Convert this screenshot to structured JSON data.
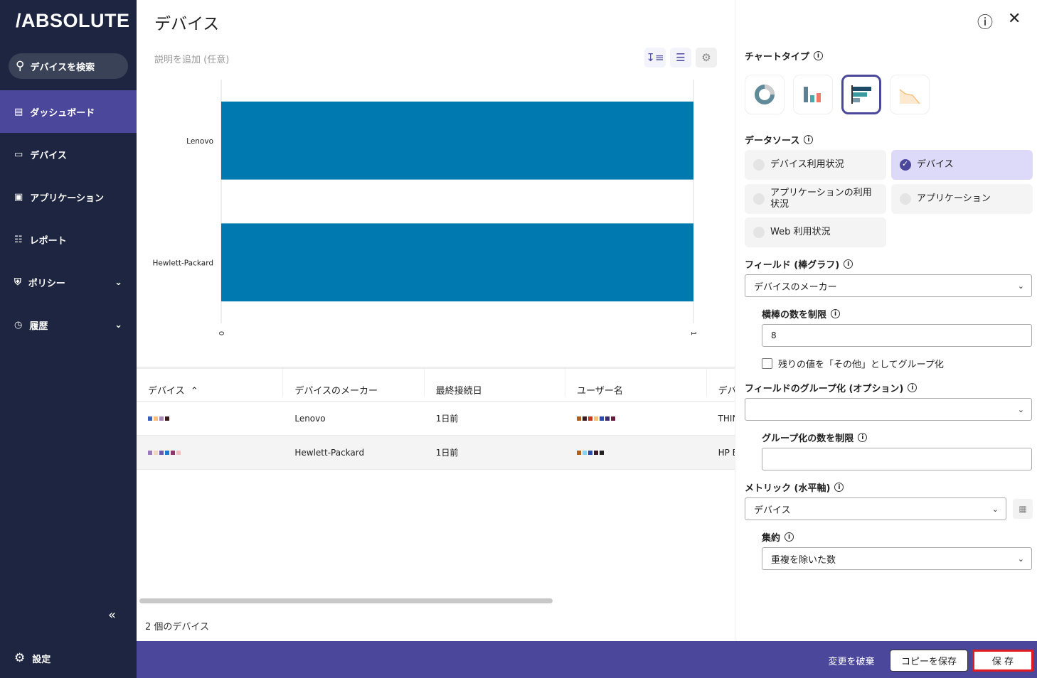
{
  "sidebar": {
    "logo": "/ABSOLUTE",
    "search": "デバイスを検索",
    "items": [
      {
        "label": "ダッシュボード"
      },
      {
        "label": "デバイス"
      },
      {
        "label": "アプリケーション"
      },
      {
        "label": "レポート"
      },
      {
        "label": "ポリシー"
      },
      {
        "label": "履歴"
      }
    ],
    "settings": "設定"
  },
  "header": {
    "title": "デバイス",
    "description_placeholder": "説明を追加 (任意)"
  },
  "chart_data": {
    "type": "bar",
    "orientation": "horizontal",
    "categories": [
      "Lenovo",
      "Hewlett-Packard"
    ],
    "values": [
      1,
      1
    ],
    "xlim": [
      0,
      1
    ],
    "xticks": [
      "0",
      "1"
    ],
    "color": "#0079b0",
    "grid": true
  },
  "table": {
    "columns": [
      "デバイス",
      "デバイスのメーカー",
      "最終接続日",
      "ユーザー名",
      "デバ"
    ],
    "rows": [
      {
        "maker": "Lenovo",
        "last": "1日前",
        "model": "THIN"
      },
      {
        "maker": "Hewlett-Packard",
        "last": "1日前",
        "model": "HP E"
      }
    ],
    "count": "2 個のデバイス"
  },
  "panel": {
    "chart_type_label": "チャートタイプ",
    "chart_types": [
      "donut",
      "column",
      "bar",
      "area"
    ],
    "selected_chart_type": "bar",
    "data_source_label": "データソース",
    "data_sources": [
      {
        "label": "デバイス利用状況",
        "selected": false
      },
      {
        "label": "デバイス",
        "selected": true
      },
      {
        "label": "アプリケーションの利用状況",
        "selected": false
      },
      {
        "label": "アプリケーション",
        "selected": false
      },
      {
        "label": "Web 利用状況",
        "selected": false
      }
    ],
    "field_label": "フィールド (棒グラフ)",
    "field_value": "デバイスのメーカー",
    "limit_label": "横棒の数を制限",
    "limit_value": "8",
    "group_other_label": "残りの値を「その他」としてグループ化",
    "group_other_checked": false,
    "grouping_label": "フィールドのグループ化 (オプション)",
    "grouping_value": "",
    "group_limit_label": "グループ化の数を制限",
    "group_limit_value": "",
    "metric_label": "メトリック (水平軸)",
    "metric_value": "デバイス",
    "agg_label": "集約",
    "agg_value": "重複を除いた数"
  },
  "footer": {
    "discard": "変更を破棄",
    "save_copy": "コピーを保存",
    "save": "保 存"
  },
  "colors": {
    "sidebar": "#1d2540",
    "accent": "#4b479b",
    "bar": "#0079b0",
    "save_outline": "#e21b23"
  }
}
